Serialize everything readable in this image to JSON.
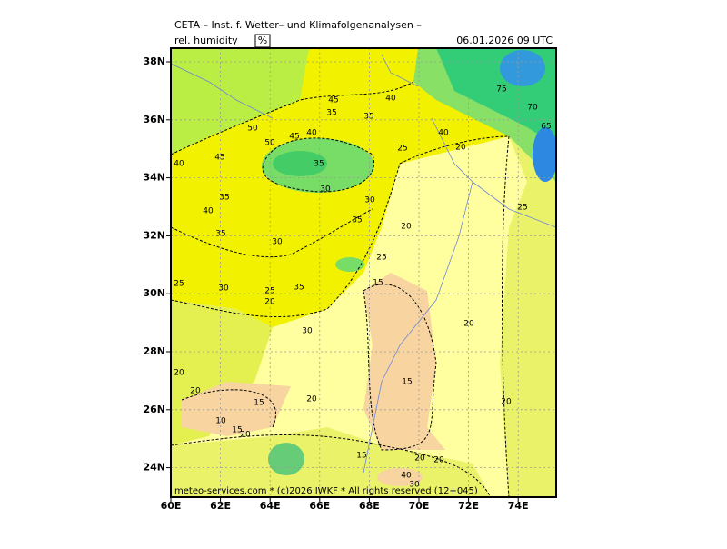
{
  "header": {
    "title": "CETA – Inst. f. Wetter– und Klimafolgenanalysen –",
    "field": "rel. humidity",
    "unit": "%",
    "valid_time": "06.01.2026 09 UTC"
  },
  "footer": "meteo-services.com * (c)2026 IWKF * All rights reserved (12+045)",
  "lat_ticks": [
    {
      "value": 38,
      "label": "38N"
    },
    {
      "value": 36,
      "label": "36N"
    },
    {
      "value": 34,
      "label": "34N"
    },
    {
      "value": 32,
      "label": "32N"
    },
    {
      "value": 30,
      "label": "30N"
    },
    {
      "value": 28,
      "label": "28N"
    },
    {
      "value": 26,
      "label": "26N"
    },
    {
      "value": 24,
      "label": "24N"
    }
  ],
  "lon_ticks": [
    {
      "value": 60,
      "label": "60E"
    },
    {
      "value": 62,
      "label": "62E"
    },
    {
      "value": 64,
      "label": "64E"
    },
    {
      "value": 66,
      "label": "66E"
    },
    {
      "value": 68,
      "label": "68E"
    },
    {
      "value": 70,
      "label": "70E"
    },
    {
      "value": 72,
      "label": "72E"
    },
    {
      "value": 74,
      "label": "74E"
    }
  ],
  "contour_labels": [
    45,
    40,
    35,
    50,
    50,
    45,
    40,
    35,
    40,
    45,
    35,
    25,
    40,
    20,
    75,
    70,
    65,
    35,
    40,
    35,
    30,
    30,
    30,
    35,
    20,
    25,
    25,
    25,
    30,
    25,
    20,
    35,
    15,
    30,
    20,
    20,
    20,
    15,
    15,
    20,
    20,
    10,
    15,
    20,
    15,
    20,
    40,
    30,
    20
  ]
}
